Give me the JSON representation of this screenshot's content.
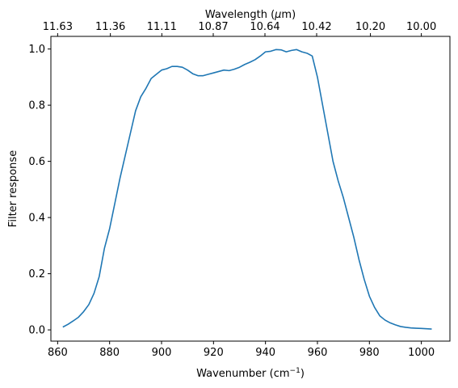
{
  "chart_data": {
    "type": "line",
    "xlabel": "Wavenumber (cm",
    "xlabel_sup": "−1",
    "xlabel_close": ")",
    "ylabel": "Filter response",
    "top_xlabel": "Wavelength (",
    "top_xlabel_mu": "μ",
    "top_xlabel_close": "m)",
    "xlim": [
      857.4,
      1011.0
    ],
    "ylim": [
      -0.04,
      1.045
    ],
    "x_ticks": [
      860,
      880,
      900,
      920,
      940,
      960,
      980,
      1000
    ],
    "y_ticks": [
      0.0,
      0.2,
      0.4,
      0.6,
      0.8,
      1.0
    ],
    "y_tick_labels": [
      "0.0",
      "0.2",
      "0.4",
      "0.6",
      "0.8",
      "1.0"
    ],
    "top_ticks": [
      {
        "label": "11.63",
        "wavenumber": 860.0
      },
      {
        "label": "11.36",
        "wavenumber": 880.3
      },
      {
        "label": "11.11",
        "wavenumber": 900.1
      },
      {
        "label": "10.87",
        "wavenumber": 919.9
      },
      {
        "label": "10.64",
        "wavenumber": 939.8
      },
      {
        "label": "10.42",
        "wavenumber": 959.7
      },
      {
        "label": "10.20",
        "wavenumber": 980.4
      },
      {
        "label": "10.00",
        "wavenumber": 1000.0
      }
    ],
    "series": [
      {
        "color": "#1f77b4",
        "x": [
          862,
          864,
          866,
          868,
          870,
          872,
          874,
          876,
          878,
          880,
          882,
          884,
          886,
          888,
          890,
          892,
          894,
          896,
          898,
          900,
          902,
          904,
          906,
          908,
          910,
          912,
          914,
          916,
          918,
          920,
          922,
          924,
          926,
          928,
          930,
          932,
          934,
          936,
          938,
          940,
          942,
          944,
          946,
          948,
          950,
          952,
          954,
          956,
          958,
          960,
          962,
          964,
          966,
          968,
          970,
          972,
          974,
          976,
          978,
          980,
          982,
          984,
          986,
          988,
          990,
          992,
          994,
          996,
          998,
          1000,
          1002,
          1004
        ],
        "y": [
          0.01,
          0.02,
          0.032,
          0.045,
          0.065,
          0.09,
          0.13,
          0.19,
          0.29,
          0.36,
          0.45,
          0.54,
          0.62,
          0.7,
          0.78,
          0.83,
          0.86,
          0.895,
          0.91,
          0.925,
          0.93,
          0.938,
          0.938,
          0.935,
          0.925,
          0.912,
          0.905,
          0.905,
          0.91,
          0.915,
          0.92,
          0.925,
          0.923,
          0.928,
          0.935,
          0.945,
          0.953,
          0.962,
          0.975,
          0.99,
          0.992,
          0.998,
          0.997,
          0.99,
          0.995,
          0.998,
          0.99,
          0.985,
          0.975,
          0.9,
          0.8,
          0.7,
          0.6,
          0.53,
          0.47,
          0.4,
          0.33,
          0.25,
          0.18,
          0.12,
          0.08,
          0.05,
          0.035,
          0.025,
          0.018,
          0.012,
          0.009,
          0.007,
          0.006,
          0.005,
          0.004,
          0.003
        ]
      }
    ],
    "grid": false,
    "legend": false
  }
}
